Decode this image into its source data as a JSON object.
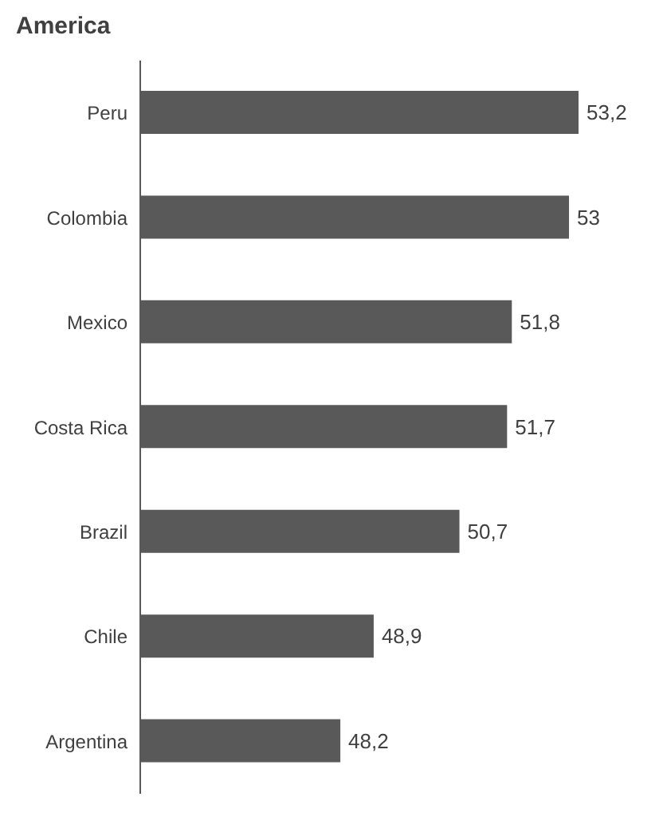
{
  "chart_data": {
    "type": "bar",
    "title": "America",
    "orientation": "horizontal",
    "categories": [
      "Peru",
      "Colombia",
      "Mexico",
      "Costa Rica",
      "Brazil",
      "Chile",
      "Argentina"
    ],
    "values": [
      53.2,
      53,
      51.8,
      51.7,
      50.7,
      48.9,
      48.2
    ],
    "value_labels": [
      "53,2",
      "53",
      "51,8",
      "51,7",
      "50,7",
      "48,9",
      "48,2"
    ],
    "color": "#595959",
    "xlim": [
      44,
      53.2
    ],
    "tick_labels": "y",
    "grid": false,
    "legend": false
  }
}
